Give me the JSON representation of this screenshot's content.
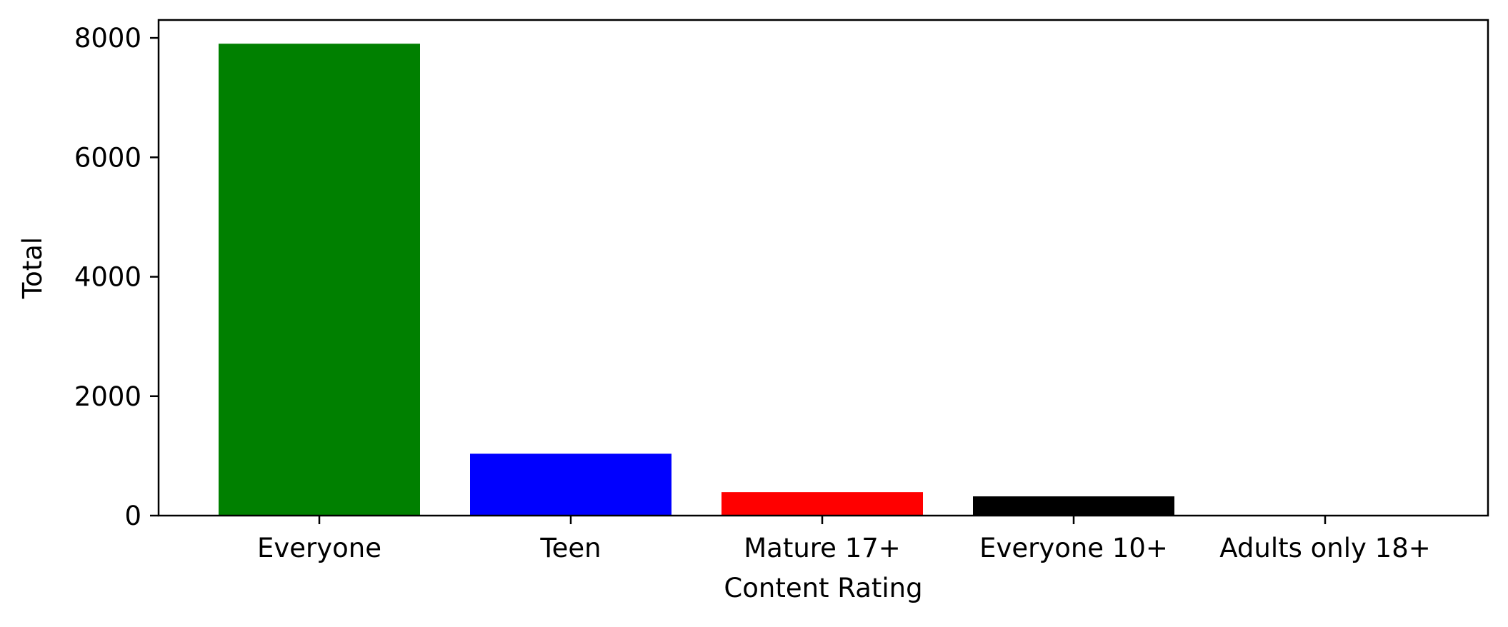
{
  "chart_data": {
    "type": "bar",
    "title": "",
    "xlabel": "Content Rating",
    "ylabel": "Total",
    "categories": [
      "Everyone",
      "Teen",
      "Mature 17+",
      "Everyone 10+",
      "Adults only 18+"
    ],
    "values": [
      7903,
      1036,
      393,
      322,
      3
    ],
    "colors": [
      "#008000",
      "#0000ff",
      "#ff0000",
      "#000000",
      "#1f77b4"
    ],
    "yticks": [
      0,
      2000,
      4000,
      6000,
      8000
    ],
    "ylim": [
      0,
      8300
    ],
    "grid": false,
    "legend": "none"
  }
}
